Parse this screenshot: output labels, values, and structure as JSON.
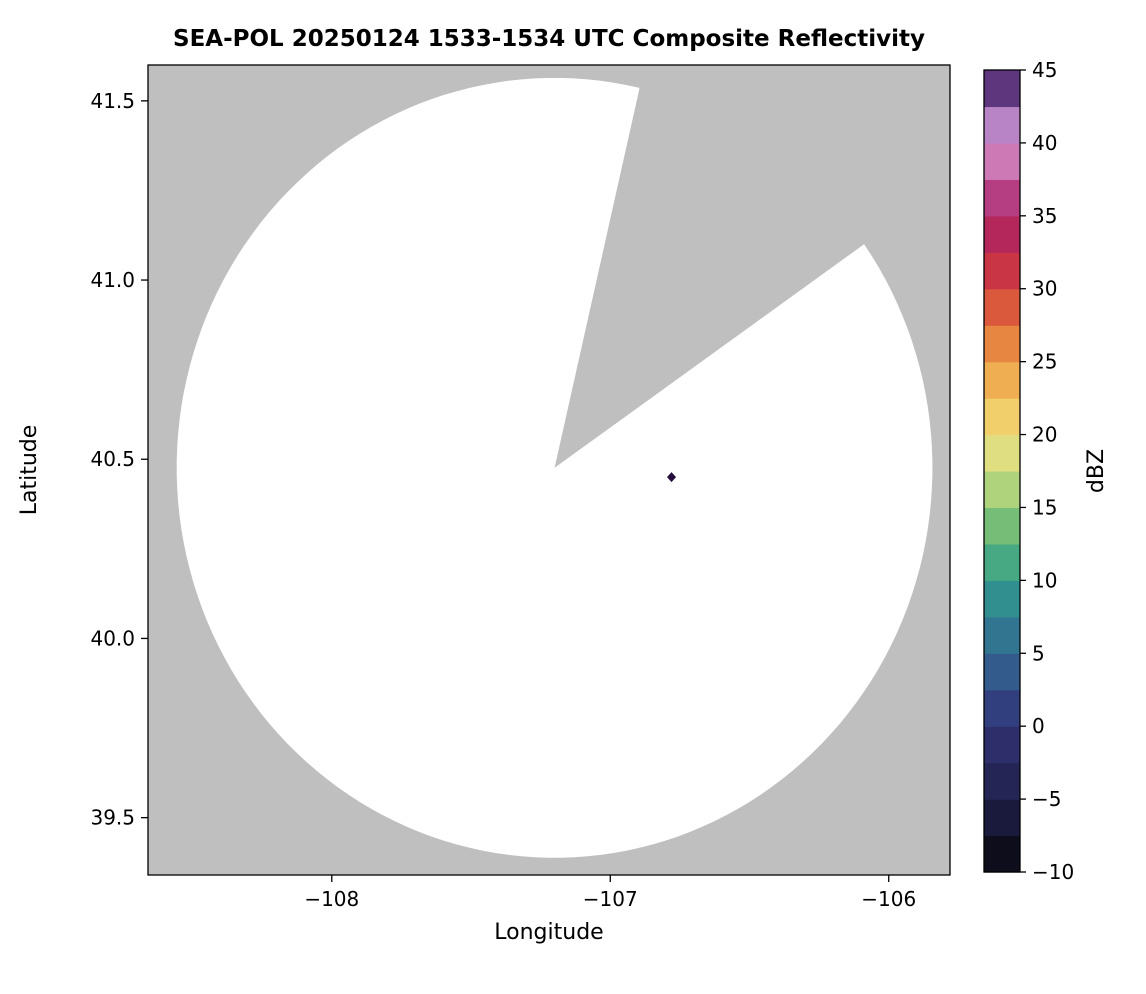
{
  "figure": {
    "background": "#ffffff"
  },
  "chart_data": {
    "type": "heatmap",
    "title": "SEA-POL 20250124 1533-1534 UTC Composite Reflectivity",
    "xlabel": "Longitude",
    "ylabel": "Latitude",
    "xlim": [
      -108.66,
      -105.78
    ],
    "ylim": [
      39.34,
      41.6
    ],
    "grid": false,
    "plot_background_color": "#bfbfbf",
    "coverage_fill_color": "#ffffff",
    "x_ticks": [
      {
        "value": -108,
        "label": "−108"
      },
      {
        "value": -107,
        "label": "−107"
      },
      {
        "value": -106,
        "label": "−106"
      }
    ],
    "y_ticks": [
      {
        "value": 41.5,
        "label": "41.5"
      },
      {
        "value": 41.0,
        "label": "41.0"
      },
      {
        "value": 40.5,
        "label": "40.5"
      },
      {
        "value": 40.0,
        "label": "40.0"
      },
      {
        "value": 39.5,
        "label": "39.5"
      }
    ],
    "radar": {
      "center_lon": -107.2,
      "center_lat": 40.476,
      "radius_lon_deg": 1.357,
      "radius_lat_deg": 1.088,
      "blocked_sector_azimuth_deg": [
        14,
        55
      ]
    },
    "echoes": [
      {
        "lon": -106.78,
        "lat": 40.45,
        "dbz": 45
      }
    ],
    "colorbar": {
      "label": "dBZ",
      "min": -10,
      "max": 45,
      "ticks": [
        {
          "value": -10,
          "label": "−10"
        },
        {
          "value": -5,
          "label": "−5"
        },
        {
          "value": 0,
          "label": "0"
        },
        {
          "value": 5,
          "label": "5"
        },
        {
          "value": 10,
          "label": "10"
        },
        {
          "value": 15,
          "label": "15"
        },
        {
          "value": 20,
          "label": "20"
        },
        {
          "value": 25,
          "label": "25"
        },
        {
          "value": 30,
          "label": "30"
        },
        {
          "value": 35,
          "label": "35"
        },
        {
          "value": 40,
          "label": "40"
        },
        {
          "value": 45,
          "label": "45"
        }
      ],
      "colormap_stops": [
        {
          "value": -10,
          "color": "#060606"
        },
        {
          "value": -7.5,
          "color": "#141430"
        },
        {
          "value": -5,
          "color": "#20204a"
        },
        {
          "value": -2.5,
          "color": "#2a2a5f"
        },
        {
          "value": 0,
          "color": "#313175"
        },
        {
          "value": 2.5,
          "color": "#334d86"
        },
        {
          "value": 5,
          "color": "#32688f"
        },
        {
          "value": 7.5,
          "color": "#2f8292"
        },
        {
          "value": 10,
          "color": "#339c8c"
        },
        {
          "value": 12.5,
          "color": "#5bb47b"
        },
        {
          "value": 15,
          "color": "#90c873"
        },
        {
          "value": 17.5,
          "color": "#cdde85"
        },
        {
          "value": 20,
          "color": "#f0e07c"
        },
        {
          "value": 22.5,
          "color": "#f2bf5c"
        },
        {
          "value": 25,
          "color": "#ec9c46"
        },
        {
          "value": 27.5,
          "color": "#e16f3b"
        },
        {
          "value": 30,
          "color": "#d2413a"
        },
        {
          "value": 32.5,
          "color": "#bf2950"
        },
        {
          "value": 35,
          "color": "#a72566"
        },
        {
          "value": 37.5,
          "color": "#c2579d"
        },
        {
          "value": 40,
          "color": "#d89bcd"
        },
        {
          "value": 41.5,
          "color": "#b27fc5"
        },
        {
          "value": 43,
          "color": "#7e4fa3"
        },
        {
          "value": 45,
          "color": "#250d3d"
        }
      ]
    }
  }
}
